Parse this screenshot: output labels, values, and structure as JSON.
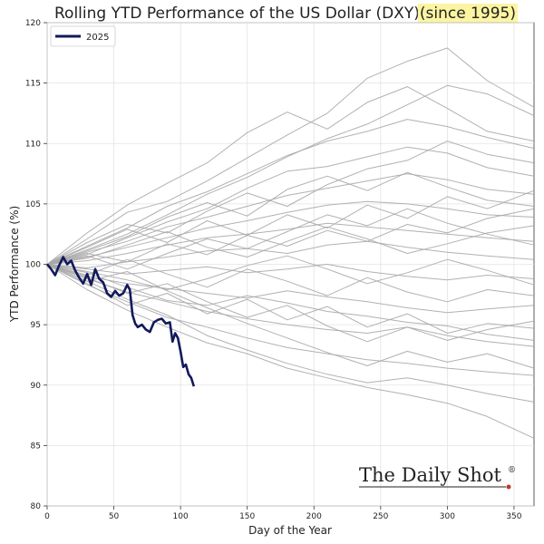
{
  "chart_data": {
    "type": "line",
    "title_main": "Rolling YTD Performance of the US Dollar (DXY) ",
    "title_highlight": "(since 1995)",
    "xlabel": "Day of the Year",
    "ylabel": "YTD Performance (%)",
    "xlim": [
      0,
      365
    ],
    "ylim": [
      80,
      120
    ],
    "x_ticks": [
      0,
      50,
      100,
      150,
      200,
      250,
      300,
      350
    ],
    "y_ticks": [
      80,
      85,
      90,
      95,
      100,
      105,
      110,
      115,
      120
    ],
    "grid": true,
    "legend_position": "top-left",
    "brand": "The Daily Shot",
    "brand_mark": "®",
    "colors": {
      "highlight": "#111a5c",
      "history": "#a8a8a8",
      "title_highlight_bg": "#fbf5a2",
      "brand_dot": "#c0392b"
    },
    "series": [
      {
        "name": "2025",
        "highlight": true,
        "x": [
          0,
          3,
          6,
          9,
          12,
          15,
          18,
          21,
          24,
          27,
          30,
          33,
          36,
          39,
          42,
          45,
          48,
          51,
          54,
          57,
          60,
          62,
          64,
          66,
          68,
          71,
          74,
          77,
          80,
          83,
          86,
          89,
          92,
          94,
          96,
          98,
          100,
          102,
          104,
          106,
          108,
          110
        ],
        "values": [
          100,
          99.6,
          99.1,
          99.9,
          100.6,
          100.0,
          100.3,
          99.5,
          98.9,
          98.4,
          99.2,
          98.3,
          99.6,
          98.8,
          98.5,
          97.6,
          97.3,
          97.8,
          97.4,
          97.6,
          98.3,
          97.9,
          95.8,
          95.1,
          94.8,
          95.0,
          94.6,
          94.4,
          95.2,
          95.4,
          95.5,
          95.1,
          95.2,
          93.6,
          94.3,
          93.9,
          92.8,
          91.5,
          91.7,
          90.9,
          90.6,
          89.9
        ]
      },
      {
        "name": "",
        "x": [
          0,
          30,
          60,
          90,
          120,
          150,
          180,
          210,
          240,
          270,
          300,
          330,
          365
        ],
        "values": [
          100,
          101.2,
          102.5,
          104.1,
          105.8,
          107.2,
          108.9,
          110.4,
          111.6,
          113.2,
          114.8,
          114.1,
          112.3
        ]
      },
      {
        "name": "",
        "x": [
          0,
          30,
          60,
          90,
          120,
          150,
          180,
          210,
          240,
          270,
          300,
          330,
          365
        ],
        "values": [
          100,
          102.1,
          104.3,
          105.2,
          106.9,
          108.8,
          110.7,
          112.5,
          115.4,
          116.8,
          117.9,
          115.2,
          113.0
        ]
      },
      {
        "name": "",
        "x": [
          0,
          30,
          60,
          90,
          120,
          150,
          180,
          210,
          240,
          270,
          300,
          330,
          365
        ],
        "values": [
          100,
          101.5,
          103.0,
          104.8,
          106.0,
          107.5,
          109.0,
          110.2,
          111.0,
          112.0,
          111.4,
          110.5,
          109.6
        ]
      },
      {
        "name": "",
        "x": [
          0,
          30,
          60,
          90,
          120,
          150,
          180,
          210,
          240,
          270,
          300,
          330,
          365
        ],
        "values": [
          100,
          100.8,
          102.2,
          103.5,
          104.6,
          106.3,
          107.7,
          108.1,
          108.9,
          109.7,
          109.2,
          108.0,
          107.3
        ]
      },
      {
        "name": "",
        "x": [
          0,
          30,
          60,
          90,
          120,
          150,
          180,
          210,
          240,
          270,
          300,
          330,
          365
        ],
        "values": [
          100,
          101.0,
          101.9,
          103.1,
          103.9,
          104.8,
          105.7,
          106.3,
          106.9,
          107.5,
          107.0,
          106.2,
          105.8
        ]
      },
      {
        "name": "",
        "x": [
          0,
          30,
          60,
          90,
          120,
          150,
          180,
          210,
          240,
          270,
          300,
          330,
          365
        ],
        "values": [
          100,
          100.6,
          101.4,
          102.2,
          103.0,
          103.6,
          104.3,
          104.9,
          105.2,
          105.0,
          104.6,
          104.1,
          103.9
        ]
      },
      {
        "name": "",
        "x": [
          0,
          30,
          60,
          90,
          120,
          150,
          180,
          210,
          240,
          270,
          300,
          330,
          365
        ],
        "values": [
          100,
          100.3,
          100.9,
          101.6,
          102.2,
          102.5,
          102.9,
          103.4,
          103.1,
          102.8,
          102.5,
          102.2,
          101.9
        ]
      },
      {
        "name": "",
        "x": [
          0,
          30,
          60,
          90,
          120,
          150,
          180,
          210,
          240,
          270,
          300,
          330,
          365
        ],
        "values": [
          100,
          99.7,
          100.2,
          100.6,
          101.1,
          101.3,
          100.9,
          101.6,
          101.9,
          101.4,
          101.0,
          100.7,
          100.4
        ]
      },
      {
        "name": "",
        "x": [
          0,
          30,
          60,
          90,
          120,
          150,
          180,
          210,
          240,
          270,
          300,
          330,
          365
        ],
        "values": [
          100,
          99.6,
          99.2,
          99.5,
          99.8,
          99.3,
          99.6,
          100.0,
          99.4,
          99.0,
          98.7,
          99.1,
          98.8
        ]
      },
      {
        "name": "",
        "x": [
          0,
          30,
          60,
          90,
          120,
          150,
          180,
          210,
          240,
          270,
          300,
          330,
          365
        ],
        "values": [
          100,
          99.0,
          98.4,
          98.0,
          97.6,
          97.2,
          97.8,
          97.3,
          96.9,
          96.4,
          96.0,
          96.3,
          96.6
        ]
      },
      {
        "name": "",
        "x": [
          0,
          30,
          60,
          90,
          120,
          150,
          180,
          210,
          240,
          270,
          300,
          330,
          365
        ],
        "values": [
          100,
          98.8,
          97.7,
          96.9,
          96.1,
          95.5,
          95.0,
          94.6,
          94.3,
          94.8,
          94.1,
          93.6,
          93.2
        ]
      },
      {
        "name": "",
        "x": [
          0,
          30,
          60,
          90,
          120,
          150,
          180,
          210,
          240,
          270,
          300,
          330,
          365
        ],
        "values": [
          100,
          98.3,
          96.9,
          95.6,
          94.8,
          93.9,
          93.1,
          92.6,
          92.1,
          91.8,
          91.4,
          91.1,
          90.8
        ]
      },
      {
        "name": "",
        "x": [
          0,
          30,
          60,
          90,
          120,
          150,
          180,
          210,
          240,
          270,
          300,
          330,
          365
        ],
        "values": [
          100,
          98.6,
          97.1,
          95.8,
          94.1,
          92.9,
          91.8,
          90.9,
          90.2,
          90.6,
          90.0,
          89.3,
          88.6
        ]
      },
      {
        "name": "",
        "x": [
          0,
          30,
          60,
          90,
          120,
          150,
          180,
          210,
          240,
          270,
          300,
          330,
          365
        ],
        "values": [
          100,
          97.9,
          96.2,
          94.8,
          93.5,
          92.6,
          91.4,
          90.6,
          89.8,
          89.2,
          88.5,
          87.4,
          85.6
        ]
      },
      {
        "name": "",
        "x": [
          0,
          30,
          60,
          90,
          120,
          150,
          180,
          210,
          240,
          270,
          300,
          330,
          365
        ],
        "values": [
          100,
          99.3,
          98.1,
          97.0,
          96.6,
          97.4,
          96.8,
          96.1,
          95.7,
          95.2,
          94.9,
          94.2,
          93.7
        ]
      },
      {
        "name": "",
        "x": [
          0,
          30,
          60,
          90,
          120,
          150,
          180,
          210,
          240,
          270,
          300,
          330,
          365
        ],
        "values": [
          100,
          101.8,
          103.3,
          102.6,
          104.4,
          105.9,
          104.8,
          106.6,
          107.9,
          108.6,
          110.2,
          109.1,
          108.4
        ]
      },
      {
        "name": "",
        "x": [
          0,
          30,
          60,
          90,
          120,
          150,
          180,
          210,
          240,
          270,
          300,
          330,
          365
        ],
        "values": [
          100,
          100.9,
          100.2,
          101.7,
          100.8,
          102.4,
          101.5,
          102.8,
          101.9,
          103.3,
          102.6,
          103.8,
          104.6
        ]
      },
      {
        "name": "",
        "x": [
          0,
          30,
          60,
          90,
          120,
          150,
          180,
          210,
          240,
          270,
          300,
          330,
          365
        ],
        "values": [
          100,
          99.1,
          100.4,
          99.2,
          98.1,
          99.6,
          98.6,
          97.4,
          98.9,
          97.7,
          96.9,
          97.9,
          97.4
        ]
      },
      {
        "name": "",
        "x": [
          0,
          30,
          60,
          90,
          120,
          150,
          180,
          210,
          240,
          270,
          300,
          330,
          365
        ],
        "values": [
          100,
          98.9,
          97.6,
          98.4,
          96.9,
          95.6,
          96.6,
          94.9,
          93.6,
          94.8,
          93.7,
          94.6,
          95.3
        ]
      },
      {
        "name": "",
        "x": [
          0,
          30,
          60,
          90,
          120,
          150,
          180,
          210,
          240,
          270,
          300,
          330,
          365
        ],
        "values": [
          100,
          101.4,
          102.9,
          101.8,
          103.6,
          102.4,
          104.1,
          103.0,
          104.9,
          103.8,
          105.6,
          104.6,
          106.1
        ]
      },
      {
        "name": "",
        "x": [
          0,
          30,
          60,
          90,
          120,
          150,
          180,
          210,
          240,
          270,
          300,
          330,
          365
        ],
        "values": [
          100,
          102.6,
          104.9,
          106.7,
          108.4,
          110.9,
          112.6,
          111.2,
          113.4,
          114.7,
          112.9,
          111.0,
          110.2
        ]
      },
      {
        "name": "",
        "x": [
          0,
          30,
          60,
          90,
          120,
          150,
          180,
          210,
          240,
          270,
          300,
          330,
          365
        ],
        "values": [
          100,
          98.4,
          96.6,
          97.6,
          95.9,
          97.1,
          95.4,
          96.5,
          94.8,
          95.9,
          94.3,
          95.1,
          94.7
        ]
      },
      {
        "name": "",
        "x": [
          0,
          30,
          60,
          90,
          120,
          150,
          180,
          210,
          240,
          270,
          300,
          330,
          365
        ],
        "values": [
          100,
          100.5,
          101.6,
          102.7,
          101.4,
          100.6,
          101.9,
          103.1,
          102.1,
          100.9,
          101.7,
          102.6,
          103.2
        ]
      },
      {
        "name": "",
        "x": [
          0,
          30,
          60,
          90,
          120,
          150,
          180,
          210,
          240,
          270,
          300,
          330,
          365
        ],
        "values": [
          100,
          99.4,
          98.7,
          97.9,
          98.8,
          99.9,
          100.7,
          99.6,
          98.4,
          99.3,
          100.4,
          99.5,
          98.3
        ]
      },
      {
        "name": "",
        "x": [
          0,
          30,
          60,
          90,
          120,
          150,
          180,
          210,
          240,
          270,
          300,
          330,
          365
        ],
        "values": [
          100,
          101.1,
          102.3,
          103.9,
          105.1,
          104.0,
          106.2,
          107.3,
          106.1,
          107.6,
          106.4,
          105.3,
          104.8
        ]
      },
      {
        "name": "",
        "x": [
          0,
          30,
          60,
          90,
          120,
          150,
          180,
          210,
          240,
          270,
          300,
          330,
          365
        ],
        "values": [
          100,
          98.6,
          99.4,
          97.8,
          96.4,
          95.1,
          93.9,
          92.7,
          91.6,
          92.8,
          91.9,
          92.6,
          91.4
        ]
      },
      {
        "name": "",
        "x": [
          0,
          30,
          60,
          90,
          120,
          150,
          180,
          210,
          240,
          270,
          300,
          330,
          365
        ],
        "values": [
          100,
          100.7,
          99.6,
          100.9,
          102.1,
          101.3,
          102.7,
          104.1,
          103.2,
          104.6,
          103.4,
          102.5,
          101.6
        ]
      }
    ]
  }
}
